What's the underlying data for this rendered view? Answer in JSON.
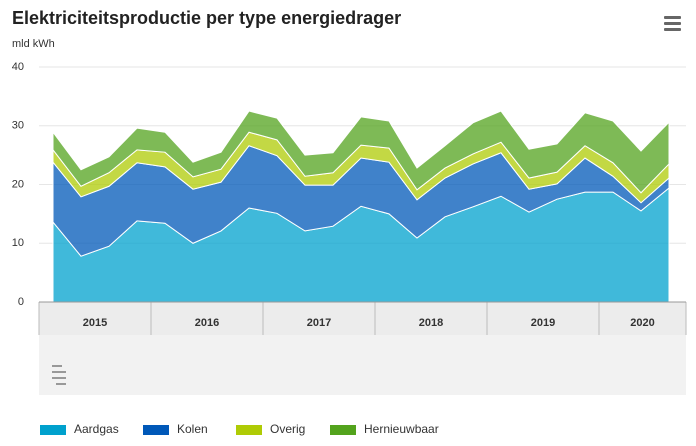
{
  "chart_data": {
    "type": "stacked_area",
    "title": "Elektriciteitsproductie per type energiedrager",
    "y_label": "mld kWh",
    "categories": [
      null,
      null,
      null,
      null,
      null,
      null,
      null,
      null,
      null,
      null,
      null,
      null,
      null,
      null,
      null,
      null,
      null,
      null,
      null,
      null,
      null,
      null,
      null
    ],
    "year_labels": [
      "2015",
      "2016",
      "2017",
      "2018",
      "2019",
      "2020"
    ],
    "series": [
      {
        "name": "Aardgas",
        "color": "#00a1cd",
        "values": [
          13.6,
          7.8,
          9.5,
          13.8,
          13.4,
          10.0,
          12.1,
          16.0,
          15.1,
          12.1,
          12.9,
          16.3,
          15.0,
          10.9,
          14.5,
          16.2,
          18.0,
          15.3,
          17.5,
          18.7,
          18.7,
          15.5,
          19.4
        ]
      },
      {
        "name": "Kolen",
        "color": "#0058b8",
        "values": [
          10.2,
          10.1,
          10.2,
          9.9,
          9.6,
          9.2,
          8.3,
          10.6,
          9.8,
          7.8,
          7.0,
          8.2,
          8.8,
          6.5,
          6.6,
          7.3,
          7.4,
          3.9,
          2.6,
          5.8,
          2.7,
          1.4,
          1.7
        ]
      },
      {
        "name": "Overig",
        "color": "#afcb05",
        "values": [
          2.1,
          1.8,
          2.3,
          2.2,
          2.5,
          2.1,
          2.2,
          2.3,
          2.7,
          1.5,
          2.1,
          2.2,
          2.4,
          1.7,
          1.7,
          1.7,
          1.8,
          1.9,
          2.0,
          2.1,
          2.3,
          1.7,
          2.4
        ]
      },
      {
        "name": "Hernieuwbaar",
        "color": "#53a31d",
        "values": [
          3.0,
          2.8,
          2.7,
          3.7,
          3.4,
          2.5,
          2.9,
          3.6,
          3.7,
          3.6,
          3.4,
          4.8,
          4.6,
          3.7,
          3.8,
          5.3,
          5.3,
          4.9,
          4.8,
          5.6,
          7.1,
          7.1,
          7.1
        ]
      }
    ],
    "ylim": [
      0,
      40
    ],
    "yticks": [
      0,
      10,
      20,
      30,
      40
    ],
    "grid": true,
    "legend": "bottom"
  }
}
